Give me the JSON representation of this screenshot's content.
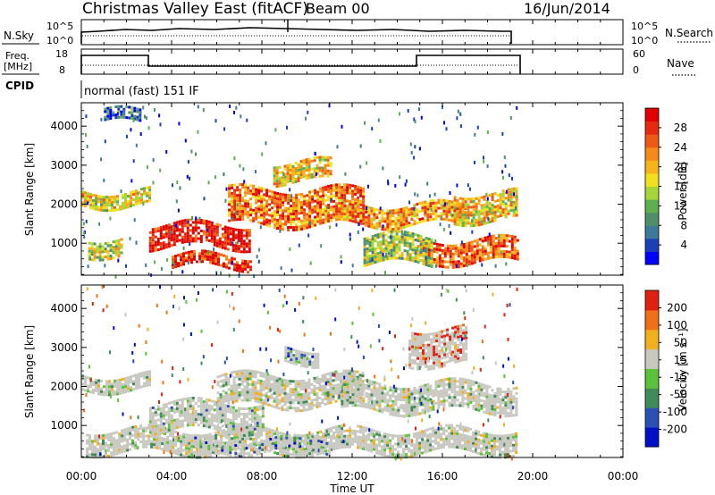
{
  "header": {
    "title": "Christmas Valley East (fitACF)",
    "beam": "Beam 00",
    "date": "16/Jun/2014"
  },
  "small_panels": {
    "nsky_label": "N.Sky",
    "nsky_ticks": [
      "10^5",
      "10^0"
    ],
    "nsearch_label": "N.Search",
    "freq_label_1": "Freq.",
    "freq_label_2": "[MHz]",
    "freq_ticks": [
      "18",
      "8"
    ],
    "nave_label": "Nave",
    "nave_ticks": [
      "60",
      "0"
    ],
    "cpid_label": "CPID",
    "cpid_text": "normal (fast) 151 IF"
  },
  "chart_data": [
    {
      "type": "heatmap",
      "name": "power",
      "ylabel": "Slant Range [km]",
      "ylim": [
        180,
        4600
      ],
      "yticks": [
        1000,
        2000,
        3000,
        4000
      ],
      "xlabel": "Time UT",
      "xlim_hours": [
        0,
        24
      ],
      "colorbar": {
        "label": "Power [dB]",
        "ticks": [
          "28",
          "24",
          "20",
          "16",
          "12",
          "8",
          "4"
        ],
        "colors": [
          "#0000ff",
          "#1c3fb8",
          "#3d7a9a",
          "#4f8f6a",
          "#5fae50",
          "#a6d63a",
          "#f0e020",
          "#f7b31a",
          "#f58a18",
          "#ee5a14",
          "#e62a10",
          "#e00000"
        ]
      },
      "bands": [
        {
          "t0": 0.0,
          "t1": 3.0,
          "r0": 1950,
          "r1": 2350,
          "level": 0.55
        },
        {
          "t0": 0.3,
          "t1": 1.8,
          "r0": 700,
          "r1": 1150,
          "level": 0.5
        },
        {
          "t0": 3.0,
          "t1": 7.5,
          "r0": 900,
          "r1": 1500,
          "level": 0.95
        },
        {
          "t0": 4.0,
          "t1": 7.5,
          "r0": 400,
          "r1": 700,
          "level": 0.9
        },
        {
          "t0": 6.5,
          "t1": 12.5,
          "r0": 1500,
          "r1": 2400,
          "level": 0.75
        },
        {
          "t0": 11.5,
          "t1": 17.0,
          "r0": 1500,
          "r1": 2000,
          "level": 0.7
        },
        {
          "t0": 15.0,
          "t1": 19.3,
          "r0": 500,
          "r1": 1100,
          "level": 0.8
        },
        {
          "t0": 16.5,
          "t1": 19.3,
          "r0": 1600,
          "r1": 2300,
          "level": 0.6
        },
        {
          "t0": 8.5,
          "t1": 11.0,
          "r0": 2600,
          "r1": 3100,
          "level": 0.6
        },
        {
          "t0": 12.5,
          "t1": 15.5,
          "r0": 500,
          "r1": 1200,
          "level": 0.45
        },
        {
          "t0": 1.0,
          "t1": 2.6,
          "r0": 4100,
          "r1": 4400,
          "level": 0.2
        }
      ]
    },
    {
      "type": "heatmap",
      "name": "velocity",
      "ylabel": "Slant Range [km]",
      "ylim": [
        180,
        4600
      ],
      "yticks": [
        1000,
        2000,
        3000,
        4000
      ],
      "xlabel": "Time UT",
      "xlim_hours": [
        0,
        24
      ],
      "colorbar": {
        "label": "Velocity [m s⁻¹]",
        "ticks": [
          "200",
          "100",
          "50",
          "15",
          "-15",
          "-50",
          "-100",
          "-200"
        ],
        "colors": [
          "#0010c8",
          "#2a4fb5",
          "#3f8c5a",
          "#5cc23a",
          "#c8c8c0",
          "#f0b020",
          "#f07018",
          "#e02010"
        ]
      },
      "bands": [
        {
          "t0": 0.0,
          "t1": 3.0,
          "r0": 1900,
          "r1": 2300,
          "level": 0.5
        },
        {
          "t0": 0.2,
          "t1": 19.3,
          "r0": 300,
          "r1": 900,
          "level": 0.5
        },
        {
          "t0": 3.0,
          "t1": 8.0,
          "r0": 900,
          "r1": 1600,
          "level": 0.45
        },
        {
          "t0": 6.0,
          "t1": 12.5,
          "r0": 1500,
          "r1": 2300,
          "level": 0.5
        },
        {
          "t0": 11.5,
          "t1": 19.3,
          "r0": 1400,
          "r1": 2100,
          "level": 0.5
        },
        {
          "t0": 5.0,
          "t1": 11.0,
          "r0": 350,
          "r1": 650,
          "level": 0.3
        },
        {
          "t0": 9.0,
          "t1": 10.5,
          "r0": 2600,
          "r1": 3000,
          "level": 0.25
        },
        {
          "t0": 14.5,
          "t1": 17.0,
          "r0": 2550,
          "r1": 3500,
          "level": 0.95
        }
      ]
    }
  ],
  "time_axis": {
    "label": "Time UT",
    "ticks": [
      "00:00",
      "04:00",
      "08:00",
      "12:00",
      "16:00",
      "20:00",
      "00:00"
    ]
  }
}
